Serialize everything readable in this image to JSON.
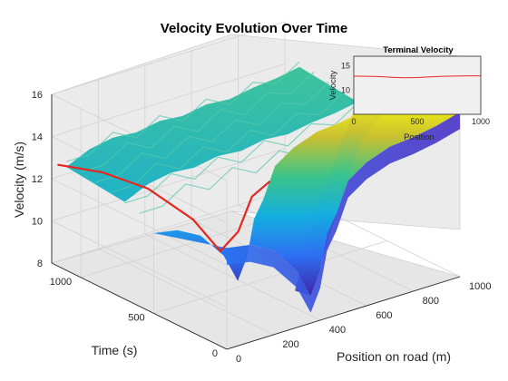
{
  "chart_data": [
    {
      "type": "surface",
      "title": "Velocity Evolution Over Time",
      "xlabel": "Position on road (m)",
      "ylabel": "Time (s)",
      "zlabel": "Velocity (m/s)",
      "xlim": [
        0,
        1000
      ],
      "ylim": [
        0,
        1200
      ],
      "zlim": [
        8,
        16
      ],
      "x_ticks": [
        0,
        200,
        400,
        600,
        800,
        1000
      ],
      "y_ticks": [
        0,
        500,
        1000
      ],
      "z_ticks": [
        8,
        10,
        12,
        14,
        16
      ],
      "grid": true,
      "colormap": "parula",
      "surface_at_time_zero": {
        "series_name": "",
        "line_color": "#e8251f",
        "x": [
          0,
          100,
          200,
          300,
          360,
          400,
          430,
          470,
          520,
          600,
          700,
          800,
          900,
          1000
        ],
        "velocity": [
          12.8,
          12.6,
          12.0,
          10.7,
          9.3,
          10.3,
          12.0,
          12.8,
          14.2,
          14.8,
          15.2,
          15.3,
          15.5,
          15.8
        ]
      },
      "background_ridge_velocity": {
        "x": [
          0,
          100,
          200,
          300,
          400,
          500,
          600,
          700,
          800,
          900,
          1000
        ],
        "velocity": [
          12.9,
          13.4,
          13.6,
          13.5,
          13.7,
          13.6,
          13.8,
          13.7,
          13.9,
          14.0,
          14.2
        ]
      }
    },
    {
      "type": "line",
      "title": "Terminal Velocity",
      "xlabel": "Position",
      "ylabel": "Velocity",
      "xlim": [
        0,
        1000
      ],
      "ylim": [
        5,
        17
      ],
      "x_ticks": [
        0,
        500,
        1000
      ],
      "y_ticks": [
        10,
        15
      ],
      "line_color": "#e8251f",
      "x": [
        0,
        100,
        200,
        300,
        400,
        500,
        600,
        700,
        800,
        900,
        1000
      ],
      "y": [
        12.9,
        12.85,
        12.8,
        12.65,
        12.55,
        12.6,
        12.75,
        12.85,
        12.9,
        12.95,
        12.95
      ]
    }
  ]
}
